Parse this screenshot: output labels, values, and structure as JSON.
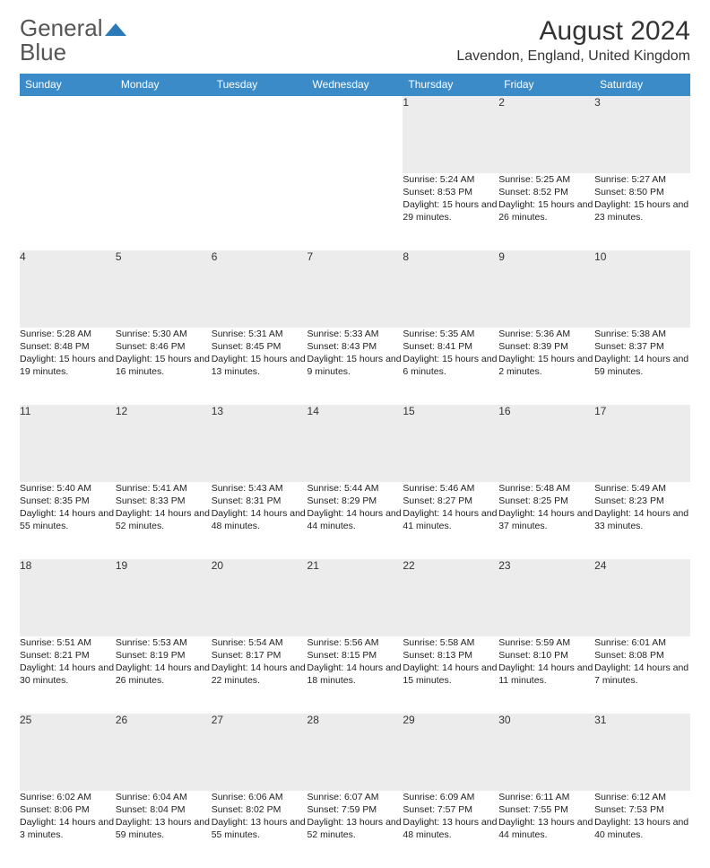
{
  "header": {
    "logo_gray": "General",
    "logo_blue": "Blue",
    "month_title": "August 2024",
    "location": "Lavendon, England, United Kingdom"
  },
  "colors": {
    "header_bg": "#3b8bc8",
    "header_text": "#ffffff",
    "daynum_bg": "#ececec",
    "row_border": "#3b8bc8",
    "logo_blue": "#2a7ab9"
  },
  "day_headers": [
    "Sunday",
    "Monday",
    "Tuesday",
    "Wednesday",
    "Thursday",
    "Friday",
    "Saturday"
  ],
  "weeks": [
    {
      "nums": [
        "",
        "",
        "",
        "",
        "1",
        "2",
        "3"
      ],
      "cells": [
        null,
        null,
        null,
        null,
        {
          "sunrise": "5:24 AM",
          "sunset": "8:53 PM",
          "daylight": "15 hours and 29 minutes."
        },
        {
          "sunrise": "5:25 AM",
          "sunset": "8:52 PM",
          "daylight": "15 hours and 26 minutes."
        },
        {
          "sunrise": "5:27 AM",
          "sunset": "8:50 PM",
          "daylight": "15 hours and 23 minutes."
        }
      ]
    },
    {
      "nums": [
        "4",
        "5",
        "6",
        "7",
        "8",
        "9",
        "10"
      ],
      "cells": [
        {
          "sunrise": "5:28 AM",
          "sunset": "8:48 PM",
          "daylight": "15 hours and 19 minutes."
        },
        {
          "sunrise": "5:30 AM",
          "sunset": "8:46 PM",
          "daylight": "15 hours and 16 minutes."
        },
        {
          "sunrise": "5:31 AM",
          "sunset": "8:45 PM",
          "daylight": "15 hours and 13 minutes."
        },
        {
          "sunrise": "5:33 AM",
          "sunset": "8:43 PM",
          "daylight": "15 hours and 9 minutes."
        },
        {
          "sunrise": "5:35 AM",
          "sunset": "8:41 PM",
          "daylight": "15 hours and 6 minutes."
        },
        {
          "sunrise": "5:36 AM",
          "sunset": "8:39 PM",
          "daylight": "15 hours and 2 minutes."
        },
        {
          "sunrise": "5:38 AM",
          "sunset": "8:37 PM",
          "daylight": "14 hours and 59 minutes."
        }
      ]
    },
    {
      "nums": [
        "11",
        "12",
        "13",
        "14",
        "15",
        "16",
        "17"
      ],
      "cells": [
        {
          "sunrise": "5:40 AM",
          "sunset": "8:35 PM",
          "daylight": "14 hours and 55 minutes."
        },
        {
          "sunrise": "5:41 AM",
          "sunset": "8:33 PM",
          "daylight": "14 hours and 52 minutes."
        },
        {
          "sunrise": "5:43 AM",
          "sunset": "8:31 PM",
          "daylight": "14 hours and 48 minutes."
        },
        {
          "sunrise": "5:44 AM",
          "sunset": "8:29 PM",
          "daylight": "14 hours and 44 minutes."
        },
        {
          "sunrise": "5:46 AM",
          "sunset": "8:27 PM",
          "daylight": "14 hours and 41 minutes."
        },
        {
          "sunrise": "5:48 AM",
          "sunset": "8:25 PM",
          "daylight": "14 hours and 37 minutes."
        },
        {
          "sunrise": "5:49 AM",
          "sunset": "8:23 PM",
          "daylight": "14 hours and 33 minutes."
        }
      ]
    },
    {
      "nums": [
        "18",
        "19",
        "20",
        "21",
        "22",
        "23",
        "24"
      ],
      "cells": [
        {
          "sunrise": "5:51 AM",
          "sunset": "8:21 PM",
          "daylight": "14 hours and 30 minutes."
        },
        {
          "sunrise": "5:53 AM",
          "sunset": "8:19 PM",
          "daylight": "14 hours and 26 minutes."
        },
        {
          "sunrise": "5:54 AM",
          "sunset": "8:17 PM",
          "daylight": "14 hours and 22 minutes."
        },
        {
          "sunrise": "5:56 AM",
          "sunset": "8:15 PM",
          "daylight": "14 hours and 18 minutes."
        },
        {
          "sunrise": "5:58 AM",
          "sunset": "8:13 PM",
          "daylight": "14 hours and 15 minutes."
        },
        {
          "sunrise": "5:59 AM",
          "sunset": "8:10 PM",
          "daylight": "14 hours and 11 minutes."
        },
        {
          "sunrise": "6:01 AM",
          "sunset": "8:08 PM",
          "daylight": "14 hours and 7 minutes."
        }
      ]
    },
    {
      "nums": [
        "25",
        "26",
        "27",
        "28",
        "29",
        "30",
        "31"
      ],
      "cells": [
        {
          "sunrise": "6:02 AM",
          "sunset": "8:06 PM",
          "daylight": "14 hours and 3 minutes."
        },
        {
          "sunrise": "6:04 AM",
          "sunset": "8:04 PM",
          "daylight": "13 hours and 59 minutes."
        },
        {
          "sunrise": "6:06 AM",
          "sunset": "8:02 PM",
          "daylight": "13 hours and 55 minutes."
        },
        {
          "sunrise": "6:07 AM",
          "sunset": "7:59 PM",
          "daylight": "13 hours and 52 minutes."
        },
        {
          "sunrise": "6:09 AM",
          "sunset": "7:57 PM",
          "daylight": "13 hours and 48 minutes."
        },
        {
          "sunrise": "6:11 AM",
          "sunset": "7:55 PM",
          "daylight": "13 hours and 44 minutes."
        },
        {
          "sunrise": "6:12 AM",
          "sunset": "7:53 PM",
          "daylight": "13 hours and 40 minutes."
        }
      ]
    }
  ],
  "labels": {
    "sunrise": "Sunrise:",
    "sunset": "Sunset:",
    "daylight": "Daylight:"
  }
}
